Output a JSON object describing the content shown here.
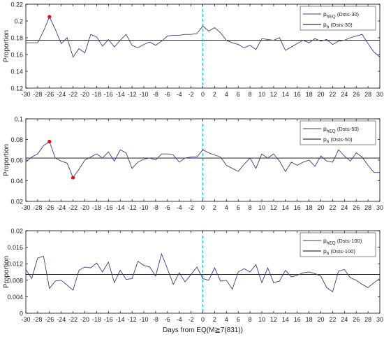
{
  "colors": {
    "series_line": "#3b3b8f",
    "baseline": "#000000",
    "event_line": "#00bcd4",
    "marker": "#dd1111",
    "axis": "#000000"
  },
  "chart_data": [
    {
      "type": "line",
      "xlabel": "",
      "ylabel": "Proportion",
      "xlim": [
        -30,
        30
      ],
      "ylim": [
        0.12,
        0.22
      ],
      "xticks": [
        "-30",
        "-28",
        "-26",
        "-24",
        "-22",
        "-20",
        "-18",
        "-16",
        "-14",
        "-12",
        "-10",
        "-8",
        "-6",
        "-4",
        "-2",
        "0",
        "2",
        "4",
        "6",
        "8",
        "10",
        "12",
        "14",
        "16",
        "18",
        "20",
        "22",
        "24",
        "26",
        "28",
        "30"
      ],
      "yticks": [
        "0.12",
        "0.14",
        "0.16",
        "0.18",
        "0.2",
        "0.22"
      ],
      "legend_placement": "top-right",
      "legend": [
        {
          "base": "p",
          "sub": "hEQ",
          "rest": " (Dst≤-30)"
        },
        {
          "base": "p",
          "sub": "h",
          "rest": " (Dst≤-30)"
        }
      ],
      "x": [
        -30,
        -29,
        -28,
        -27,
        -26,
        -25,
        -24,
        -23,
        -22,
        -21,
        -20,
        -19,
        -18,
        -17,
        -16,
        -15,
        -14,
        -13,
        -12,
        -11,
        -10,
        -9,
        -8,
        -7,
        -6,
        -5,
        -4,
        -3,
        -2,
        -1,
        0,
        1,
        2,
        3,
        4,
        5,
        6,
        7,
        8,
        9,
        10,
        11,
        12,
        13,
        14,
        15,
        16,
        17,
        18,
        19,
        20,
        21,
        22,
        23,
        24,
        25,
        26,
        27,
        28,
        29,
        30
      ],
      "series": [
        {
          "values": [
            0.174,
            0.174,
            0.174,
            0.188,
            0.205,
            0.19,
            0.173,
            0.18,
            0.157,
            0.167,
            0.162,
            0.184,
            0.181,
            0.17,
            0.178,
            0.169,
            0.177,
            0.184,
            0.171,
            0.168,
            0.172,
            0.175,
            0.171,
            0.176,
            0.182,
            0.183,
            0.183,
            0.184,
            0.184,
            0.185,
            0.194,
            0.188,
            0.192,
            0.186,
            0.177,
            0.174,
            0.172,
            0.168,
            0.171,
            0.166,
            0.179,
            0.178,
            0.177,
            0.18,
            0.165,
            0.169,
            0.173,
            0.177,
            0.174,
            0.179,
            0.176,
            0.178,
            0.172,
            0.176,
            0.177,
            0.18,
            0.182,
            0.184,
            0.173,
            0.163,
            0.157
          ]
        },
        {
          "constant": 0.177
        }
      ],
      "event_x": 0,
      "highlight_points": [
        {
          "x": -26,
          "y": 0.205
        }
      ]
    },
    {
      "type": "line",
      "xlabel": "",
      "ylabel": "Proportion",
      "xlim": [
        -30,
        30
      ],
      "ylim": [
        0.02,
        0.1
      ],
      "xticks": [
        "-30",
        "-28",
        "-26",
        "-24",
        "-22",
        "-20",
        "-18",
        "-16",
        "-14",
        "-12",
        "-10",
        "-8",
        "-6",
        "-4",
        "-2",
        "0",
        "2",
        "4",
        "6",
        "8",
        "10",
        "12",
        "14",
        "16",
        "18",
        "20",
        "22",
        "24",
        "26",
        "28",
        "30"
      ],
      "yticks": [
        "0.02",
        "0.04",
        "0.06",
        "0.08",
        "0.1"
      ],
      "legend_placement": "top-right",
      "legend": [
        {
          "base": "p",
          "sub": "hEQ",
          "rest": " (Dst≤-50)"
        },
        {
          "base": "p",
          "sub": "h",
          "rest": " (Dst≤-50)"
        }
      ],
      "x": [
        -30,
        -29,
        -28,
        -27,
        -26,
        -25,
        -24,
        -23,
        -22,
        -21,
        -20,
        -19,
        -18,
        -17,
        -16,
        -15,
        -14,
        -13,
        -12,
        -11,
        -10,
        -9,
        -8,
        -7,
        -6,
        -5,
        -4,
        -3,
        -2,
        -1,
        0,
        1,
        2,
        3,
        4,
        5,
        6,
        7,
        8,
        9,
        10,
        11,
        12,
        13,
        14,
        15,
        16,
        17,
        18,
        19,
        20,
        21,
        22,
        23,
        24,
        25,
        26,
        27,
        28,
        29,
        30
      ],
      "series": [
        {
          "values": [
            0.058,
            0.063,
            0.066,
            0.074,
            0.078,
            0.062,
            0.059,
            0.057,
            0.043,
            0.051,
            0.06,
            0.063,
            0.066,
            0.062,
            0.068,
            0.059,
            0.07,
            0.067,
            0.052,
            0.058,
            0.061,
            0.062,
            0.06,
            0.066,
            0.066,
            0.065,
            0.058,
            0.062,
            0.063,
            0.063,
            0.07,
            0.067,
            0.065,
            0.063,
            0.055,
            0.052,
            0.049,
            0.056,
            0.062,
            0.052,
            0.066,
            0.062,
            0.066,
            0.059,
            0.049,
            0.058,
            0.055,
            0.058,
            0.06,
            0.054,
            0.064,
            0.059,
            0.058,
            0.07,
            0.064,
            0.059,
            0.067,
            0.063,
            0.055,
            0.048,
            0.048
          ]
        },
        {
          "constant": 0.062
        }
      ],
      "event_x": 0,
      "highlight_points": [
        {
          "x": -26,
          "y": 0.078
        },
        {
          "x": -22,
          "y": 0.043
        }
      ]
    },
    {
      "type": "line",
      "xlabel": "Days from EQ(M≧7(831))",
      "ylabel": "Proportion",
      "xlim": [
        -30,
        30
      ],
      "ylim": [
        0,
        0.02
      ],
      "xticks": [
        "-30",
        "-28",
        "-26",
        "-24",
        "-22",
        "-20",
        "-18",
        "-16",
        "-14",
        "-12",
        "-10",
        "-8",
        "-6",
        "-4",
        "-2",
        "0",
        "2",
        "4",
        "6",
        "8",
        "10",
        "12",
        "14",
        "16",
        "18",
        "20",
        "22",
        "24",
        "26",
        "28",
        "30"
      ],
      "yticks": [
        "0",
        "0.004",
        "0.008",
        "0.012",
        "0.016",
        "0.02"
      ],
      "legend_placement": "top-right",
      "legend": [
        {
          "base": "p",
          "sub": "hEQ",
          "rest": " (Dst≤-100)"
        },
        {
          "base": "p",
          "sub": "h",
          "rest": " (Dst≤-100)"
        }
      ],
      "x": [
        -30,
        -29,
        -28,
        -27,
        -26,
        -25,
        -24,
        -23,
        -22,
        -21,
        -20,
        -19,
        -18,
        -17,
        -16,
        -15,
        -14,
        -13,
        -12,
        -11,
        -10,
        -9,
        -8,
        -7,
        -6,
        -5,
        -4,
        -3,
        -2,
        -1,
        0,
        1,
        2,
        3,
        4,
        5,
        6,
        7,
        8,
        9,
        10,
        11,
        12,
        13,
        14,
        15,
        16,
        17,
        18,
        19,
        20,
        21,
        22,
        23,
        24,
        25,
        26,
        27,
        28,
        29,
        30
      ],
      "series": [
        {
          "values": [
            0.0106,
            0.0084,
            0.0134,
            0.0138,
            0.006,
            0.0078,
            0.008,
            0.0068,
            0.0056,
            0.0104,
            0.0112,
            0.011,
            0.0122,
            0.01,
            0.0124,
            0.0074,
            0.0104,
            0.0082,
            0.0084,
            0.0126,
            0.0116,
            0.0112,
            0.009,
            0.0144,
            0.0108,
            0.007,
            0.0098,
            0.0076,
            0.0094,
            0.0112,
            0.0084,
            0.008,
            0.011,
            0.0078,
            0.008,
            0.0058,
            0.01,
            0.0108,
            0.01,
            0.0118,
            0.0074,
            0.011,
            0.0074,
            0.0078,
            0.0104,
            0.0088,
            0.0092,
            0.0098,
            0.01,
            0.0096,
            0.009,
            0.0062,
            0.0052,
            0.0102,
            0.0106,
            0.0086,
            0.008,
            0.007,
            0.0062,
            0.0074,
            0.0084
          ]
        },
        {
          "constant": 0.0094
        }
      ],
      "event_x": 0,
      "highlight_points": []
    }
  ]
}
